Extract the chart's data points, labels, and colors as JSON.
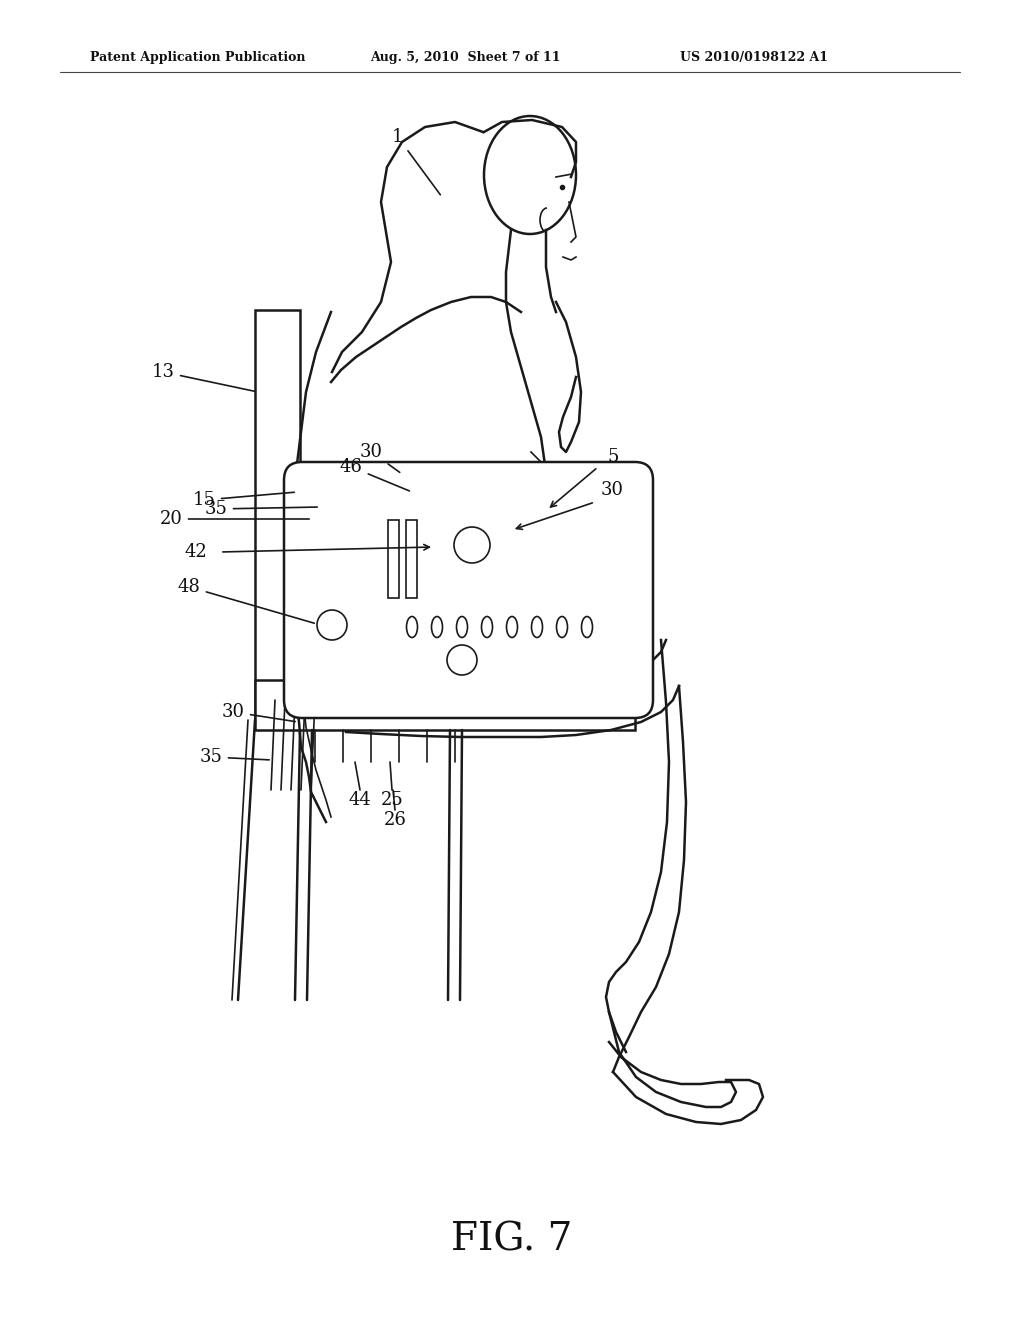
{
  "header_left": "Patent Application Publication",
  "header_mid": "Aug. 5, 2010  Sheet 7 of 11",
  "header_right": "US 2010/0198122 A1",
  "figure_label": "FIG. 7",
  "bg_color": "#ffffff",
  "line_color": "#1a1a1a"
}
